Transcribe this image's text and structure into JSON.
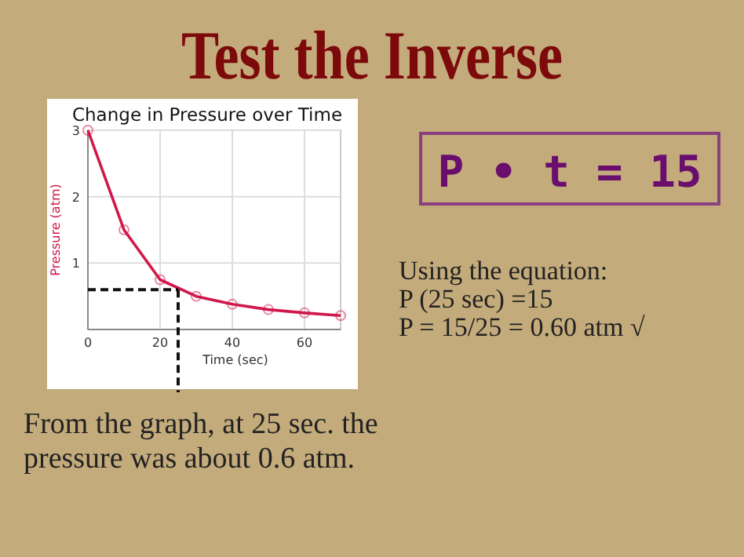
{
  "chart_data": {
    "type": "line",
    "title": "Change in Pressure over Time",
    "xlabel": "Time (sec)",
    "ylabel": "Pressure (atm)",
    "x": [
      0,
      10,
      20,
      30,
      40,
      50,
      60,
      70
    ],
    "series": [
      {
        "color": "#d0184a",
        "values": [
          3,
          1.5,
          0.75,
          0.5,
          0.38,
          0.3,
          0.25,
          0.21
        ]
      }
    ],
    "xlim": [
      0,
      70
    ],
    "ylim": [
      0,
      3
    ],
    "xticks": [
      0,
      20,
      40,
      60
    ],
    "yticks": [
      {
        "value": 0,
        "label": null
      },
      1,
      2,
      3
    ],
    "grid": true,
    "marker": "circle",
    "line_style": "solid",
    "ref_lines": [
      {
        "axis": "y",
        "value": 0.6,
        "color": "#111111",
        "line_style": "dashed"
      },
      {
        "axis": "x",
        "value": 25,
        "color": "#111111",
        "line_style": "dashed"
      }
    ],
    "annotations": [
      "Test the Inverse",
      "P • t = 15",
      "Using the equation:",
      "P (25 sec) =15",
      "P = 15/25 = 0.60 atm  √",
      "From the graph, at 25 sec. the",
      "pressure was about 0.6 atm."
    ]
  }
}
